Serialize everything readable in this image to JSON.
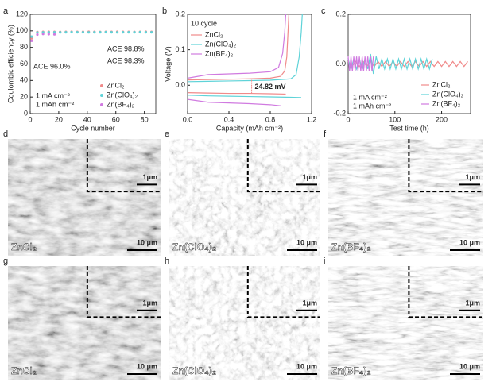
{
  "chart_data": [
    {
      "type": "scatter",
      "panel_letter": "a",
      "xlabel": "Cycle number",
      "ylabel": "Coulombic efficiency (%)",
      "xlim": [
        0,
        88
      ],
      "xticks": [
        0,
        20,
        40,
        60,
        80
      ],
      "ylim": [
        0,
        120
      ],
      "yticks": [
        0,
        20,
        40,
        60,
        80,
        100,
        120
      ],
      "x": [
        1,
        5,
        9,
        13,
        17,
        21,
        25,
        29,
        33,
        37,
        41,
        45,
        49,
        53,
        57,
        61,
        65,
        69,
        73,
        77,
        81,
        85
      ],
      "series": [
        {
          "name": "ZnCl₂",
          "color": "#f08a8a",
          "values": [
            91,
            98.5,
            98.8,
            98.9,
            98.8,
            98.7,
            98.8,
            98.9,
            98.8,
            98.8,
            98.9,
            98.8,
            98.7,
            98.8,
            98.8,
            98.9,
            98.8,
            98.8,
            98.7,
            98.8,
            98.9,
            98.8
          ]
        },
        {
          "name": "Zn(ClO₄)₂",
          "color": "#5fd3d8",
          "values": [
            93,
            97.9,
            98.2,
            98.3,
            98.3,
            98.2,
            98.3,
            98.4,
            98.3,
            98.3,
            98.2,
            98.3,
            98.3,
            98.4,
            98.3,
            98.2,
            98.3,
            98.3,
            98.3,
            98.4,
            98.3,
            98.3
          ]
        },
        {
          "name": "Zn(BF₄)₂",
          "color": "#d07ae0",
          "values": [
            88,
            95.5,
            96.2,
            96.0,
            95.8,
            null,
            null,
            null,
            null,
            null,
            null,
            null,
            null,
            null,
            null,
            null,
            null,
            null,
            null,
            null,
            null,
            null
          ]
        }
      ],
      "annotations": [
        "ACE 98.8%",
        "ACE 98.3%",
        "ACE 96.0%",
        "1 mA cm⁻²",
        "1 mAh cm⁻²"
      ]
    },
    {
      "type": "line",
      "panel_letter": "b",
      "title": "10 cycle",
      "xlabel": "Capacity (mAh cm⁻²)",
      "ylabel": "Voltage (V)",
      "xlim": [
        0,
        1.2
      ],
      "xticks": [
        {
          "value": 0,
          "label": "0.0"
        },
        0.4,
        0.8,
        1.2
      ],
      "ylim": [
        -0.08,
        0.2
      ],
      "yticks": [
        {
          "value": 0,
          "label": "0.0"
        },
        0.1,
        0.2
      ],
      "series": [
        {
          "name": "ZnCl₂",
          "color": "#f08a8a",
          "charge": {
            "x": [
              0,
              0.2,
              0.4,
              0.6,
              0.8,
              0.9,
              0.94,
              0.96,
              0.97,
              0.98
            ],
            "values": [
              0.015,
              0.016,
              0.017,
              0.018,
              0.02,
              0.025,
              0.04,
              0.08,
              0.14,
              0.2
            ]
          },
          "discharge": {
            "x": [
              0,
              0.2,
              0.4,
              0.6,
              0.8,
              0.95
            ],
            "values": [
              -0.021,
              -0.022,
              -0.023,
              -0.023,
              -0.024,
              -0.025
            ]
          }
        },
        {
          "name": "Zn(ClO₄)₂",
          "color": "#5fd3d8",
          "charge": {
            "x": [
              0,
              0.2,
              0.4,
              0.6,
              0.8,
              1.0,
              1.05,
              1.08,
              1.1,
              1.11
            ],
            "values": [
              0.01,
              0.011,
              0.012,
              0.013,
              0.014,
              0.018,
              0.03,
              0.08,
              0.15,
              0.2
            ]
          },
          "discharge": {
            "x": [
              0,
              0.2,
              0.4,
              0.6,
              0.8,
              1.0,
              1.1
            ],
            "values": [
              -0.028,
              -0.03,
              -0.031,
              -0.032,
              -0.033,
              -0.034,
              -0.035
            ]
          }
        },
        {
          "name": "Zn(BF₄)₂",
          "color": "#d07ae0",
          "charge": {
            "x": [
              0,
              0.2,
              0.4,
              0.6,
              0.8,
              0.88,
              0.92,
              0.94,
              0.95
            ],
            "values": [
              0.02,
              0.03,
              0.032,
              0.034,
              0.038,
              0.05,
              0.09,
              0.15,
              0.2
            ]
          },
          "discharge": {
            "x": [
              0,
              0.2,
              0.4,
              0.6,
              0.8,
              0.9
            ],
            "values": [
              -0.04,
              -0.048,
              -0.05,
              -0.052,
              -0.055,
              -0.058
            ]
          }
        }
      ],
      "annotations": [
        "24.82 mV"
      ]
    },
    {
      "type": "line",
      "panel_letter": "c",
      "xlabel": "Test time (h)",
      "xlim": [
        0,
        262
      ],
      "xticks": [
        0,
        100,
        200
      ],
      "ylim": [
        -0.2,
        0.2
      ],
      "yticks": [
        -0.2,
        {
          "value": 0,
          "label": "0.0"
        },
        0.2
      ],
      "series": [
        {
          "name": "ZnCl₂",
          "color": "#f08a8a",
          "x": [
            0,
            8,
            16,
            24,
            32,
            40,
            48,
            56,
            64,
            72,
            80,
            88,
            96,
            104,
            112,
            120,
            128,
            136,
            144,
            152,
            160,
            168,
            176,
            184,
            192,
            200,
            208,
            216,
            224,
            232,
            240,
            248,
            256
          ],
          "values": [
            0.01,
            -0.01,
            0.01,
            -0.01,
            0.01,
            -0.01,
            0.01,
            -0.01,
            0.01,
            -0.01,
            0.01,
            -0.01,
            0.01,
            -0.01,
            0.01,
            -0.01,
            0.01,
            -0.01,
            0.01,
            -0.01,
            0.01,
            -0.01,
            0.01,
            -0.01,
            0.01,
            -0.01,
            0.01,
            -0.01,
            0.01,
            -0.01,
            0.01,
            -0.01,
            0.01
          ]
        },
        {
          "name": "Zn(ClO₄)₂",
          "color": "#5fd3d8",
          "x": [
            0,
            6,
            12,
            18,
            24,
            30,
            36,
            42,
            48,
            54,
            60,
            66,
            72,
            78,
            84,
            90,
            96,
            102,
            108,
            114,
            120,
            126,
            132,
            138,
            144,
            150,
            156,
            162,
            168,
            174,
            180
          ],
          "values": [
            0.02,
            -0.02,
            0.02,
            -0.02,
            0.02,
            -0.02,
            0.02,
            -0.02,
            0.04,
            -0.04,
            0.03,
            -0.02,
            0.02,
            -0.02,
            0.02,
            -0.02,
            0.02,
            -0.02,
            0.02,
            -0.02,
            0.02,
            -0.02,
            0.02,
            -0.02,
            0.02,
            -0.02,
            0.02,
            -0.02,
            0.02,
            -0.02,
            0.02
          ]
        },
        {
          "name": "Zn(BF₄)₂",
          "color": "#d07ae0",
          "x": [
            0,
            3,
            6,
            9,
            12,
            15,
            18,
            21,
            24,
            27,
            30,
            33,
            36,
            39,
            42,
            45,
            48,
            51,
            54
          ],
          "values": [
            0.03,
            -0.03,
            0.03,
            -0.03,
            0.03,
            -0.03,
            0.03,
            -0.03,
            0.03,
            -0.03,
            0.03,
            -0.03,
            0.03,
            -0.03,
            0.03,
            -0.03,
            0.03,
            -0.03,
            0.03
          ]
        }
      ],
      "annotations": [
        "1 mA cm⁻²",
        "1 mAh cm⁻²"
      ]
    }
  ],
  "panels": [
    {
      "letter": "d",
      "label": "ZnCl₂",
      "inset_scale": "1μm",
      "scale": "10 μm"
    },
    {
      "letter": "e",
      "label": "Zn(ClO₄)₂",
      "inset_scale": "1μm",
      "scale": "10 μm"
    },
    {
      "letter": "f",
      "label": "Zn(BF₄)₂",
      "inset_scale": "1μm",
      "scale": "10 μm"
    },
    {
      "letter": "g",
      "label": "ZnCl₂",
      "inset_scale": "1μm",
      "scale": "10 μm"
    },
    {
      "letter": "h",
      "label": "Zn(ClO₄)₂",
      "inset_scale": "1μm",
      "scale": "10 μm"
    },
    {
      "letter": "i",
      "label": "Zn(BF₄)₂",
      "inset_scale": "1μm",
      "scale": "10 μm"
    }
  ]
}
